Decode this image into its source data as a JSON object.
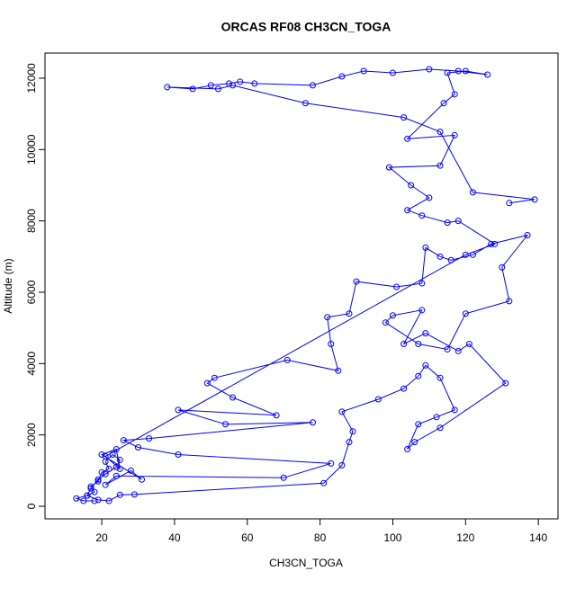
{
  "chart_data": {
    "type": "line",
    "title": "ORCAS RF08 CH3CN_TOGA",
    "xlabel": "CH3CN_TOGA",
    "ylabel": "Altitude (m)",
    "color": "#0000ff",
    "markers": true,
    "x": [
      18,
      15,
      13,
      16,
      18,
      17,
      19,
      20,
      22,
      21,
      23,
      25,
      24,
      21,
      19,
      17,
      16,
      19,
      22,
      25,
      29,
      81,
      86,
      88,
      89,
      86,
      96,
      103,
      107,
      109,
      113,
      117,
      112,
      107,
      104,
      106,
      113,
      131,
      121,
      118,
      109,
      103,
      108,
      100,
      98,
      107,
      115,
      120,
      132,
      130,
      137,
      127,
      122,
      116,
      113,
      109,
      108,
      101,
      90,
      88,
      82,
      83,
      85,
      71,
      51,
      49,
      56,
      68,
      41,
      54,
      78,
      33,
      26,
      30,
      41,
      83,
      70,
      24,
      21,
      28,
      31,
      20,
      24,
      25,
      21,
      120,
      128,
      118,
      115,
      108,
      104,
      110,
      105,
      99,
      113,
      117,
      104,
      114,
      117,
      115,
      120,
      126,
      118,
      110,
      100,
      92,
      86,
      78,
      62,
      58,
      55,
      50,
      45,
      38,
      52,
      56,
      76,
      103,
      113,
      122,
      139,
      132
    ],
    "values": [
      150,
      150,
      220,
      300,
      400,
      550,
      700,
      950,
      1050,
      1250,
      1450,
      1300,
      1100,
      900,
      750,
      500,
      300,
      180,
      150,
      320,
      330,
      650,
      1150,
      1800,
      2100,
      2650,
      3000,
      3300,
      3650,
      3950,
      3600,
      2700,
      2500,
      2300,
      1600,
      1800,
      2200,
      3450,
      4550,
      4350,
      4850,
      4550,
      5500,
      5350,
      5150,
      4550,
      4400,
      5400,
      5750,
      6700,
      7600,
      7350,
      7050,
      6900,
      7000,
      7250,
      6250,
      6150,
      6300,
      5400,
      5300,
      4550,
      3800,
      4100,
      3600,
      3450,
      3050,
      2550,
      2700,
      2300,
      2350,
      1900,
      1850,
      1650,
      1450,
      1200,
      800,
      850,
      600,
      1000,
      750,
      1450,
      1600,
      1050,
      1400,
      7050,
      7350,
      8000,
      7950,
      8150,
      8300,
      8650,
      9000,
      9500,
      9550,
      10400,
      10300,
      11300,
      11550,
      12150,
      12200,
      12100,
      12200,
      12250,
      12150,
      12200,
      12050,
      11800,
      11850,
      11900,
      11850,
      11800,
      11700,
      11750,
      11700,
      11800,
      11300,
      10900,
      10500,
      8800,
      8600,
      8500
    ],
    "xlim": [
      4.4,
      145.4
    ],
    "ylim": [
      -353,
      12705
    ],
    "xticks": [
      20,
      40,
      60,
      80,
      100,
      120,
      140
    ],
    "yticks": [
      0,
      2000,
      4000,
      6000,
      8000,
      10000,
      12000
    ]
  }
}
